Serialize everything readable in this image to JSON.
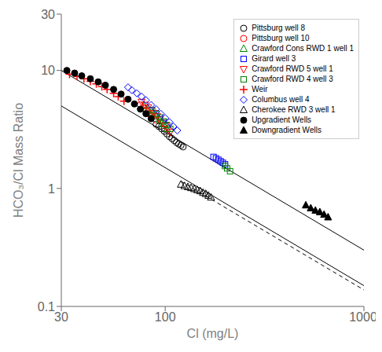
{
  "chart_data": {
    "type": "scatter",
    "x_label": "Cl (mg/L)",
    "y_label": "HCO₃/Cl Mass Ratio",
    "log": true,
    "xlim": [
      30,
      1000
    ],
    "ylim": [
      0.1,
      30
    ],
    "xticks": [
      30,
      100,
      1000
    ],
    "yticks": [
      0.1,
      1,
      10,
      30
    ],
    "grid": false,
    "legend": "upper right",
    "series": [
      {
        "type": "line",
        "line_style": "solid",
        "color": "black",
        "x": [
          30,
          1000
        ],
        "values": [
          10,
          0.3
        ]
      },
      {
        "type": "line",
        "line_style": "solid",
        "color": "black",
        "x": [
          30,
          1000
        ],
        "values": [
          5,
          0.15
        ]
      },
      {
        "type": "line",
        "line_style": "dashed",
        "color": "black",
        "x": [
          120,
          1000
        ],
        "values": [
          1.15,
          0.138
        ]
      },
      {
        "name": "Pittsburg well 8",
        "type": "scatter",
        "color": "black",
        "marker": "open-circle",
        "x": [
          90,
          93,
          96,
          99,
          102,
          105,
          108,
          111,
          114,
          117,
          120,
          123
        ],
        "values": [
          3.5,
          3.35,
          3.2,
          3.05,
          2.9,
          2.75,
          2.65,
          2.55,
          2.45,
          2.38,
          2.32,
          2.25
        ]
      },
      {
        "name": "Pittsburg well 10",
        "type": "scatter",
        "color": "red",
        "marker": "open-circle",
        "x": [
          75,
          78,
          80,
          83,
          86,
          90
        ],
        "values": [
          5.1,
          4.8,
          4.6,
          4.3,
          4.1,
          3.8
        ]
      },
      {
        "name": "Crawford Cons RWD 1 well 1",
        "type": "scatter",
        "color": "green",
        "marker": "open-triangle-up",
        "x": [
          78,
          82,
          86,
          90,
          94,
          98,
          102
        ],
        "values": [
          5.0,
          4.7,
          4.4,
          4.1,
          3.8,
          3.5,
          3.2
        ]
      },
      {
        "name": "Girard well 3",
        "type": "scatter",
        "color": "blue",
        "marker": "open-square",
        "x": [
          175,
          180,
          185,
          190,
          195,
          200
        ],
        "values": [
          1.85,
          1.8,
          1.75,
          1.7,
          1.65,
          1.6
        ]
      },
      {
        "name": "Crawford RWD 5 well 1",
        "type": "scatter",
        "color": "red",
        "marker": "open-triangle-down",
        "x": [
          76,
          79,
          82,
          85,
          88,
          91,
          94,
          97,
          100,
          103,
          106
        ],
        "values": [
          5.4,
          5.1,
          4.85,
          4.6,
          4.35,
          4.1,
          3.85,
          3.6,
          3.4,
          3.2,
          3.0
        ]
      },
      {
        "name": "Crawford RWD 4 well 3",
        "type": "scatter",
        "color": "green",
        "marker": "open-square",
        "x": [
          86,
          90,
          94,
          98,
          102,
          106,
          200,
          205,
          212
        ],
        "values": [
          4.6,
          4.3,
          4.0,
          3.7,
          3.45,
          3.2,
          1.55,
          1.48,
          1.4
        ]
      },
      {
        "name": "Weir",
        "type": "scatter",
        "color": "red",
        "marker": "plus",
        "x": [
          33,
          36,
          39,
          42,
          45,
          48,
          51,
          55,
          58,
          62
        ],
        "values": [
          9.3,
          8.9,
          8.5,
          8.1,
          7.7,
          7.3,
          6.9,
          6.4,
          6.0,
          5.5
        ]
      },
      {
        "name": "Columbus well 4",
        "type": "scatter",
        "color": "blue",
        "marker": "open-diamond",
        "x": [
          65,
          68,
          72,
          76,
          80,
          85,
          90,
          95,
          100,
          105,
          110,
          115
        ],
        "values": [
          7.2,
          6.8,
          6.4,
          6.0,
          5.6,
          5.1,
          4.7,
          4.3,
          3.95,
          3.65,
          3.35,
          3.1
        ]
      },
      {
        "name": "Cherokee RWD 3 well 1",
        "type": "scatter",
        "color": "black",
        "marker": "open-triangle-up",
        "x": [
          120,
          125,
          130,
          135,
          140,
          145,
          150,
          155,
          160,
          165,
          170
        ],
        "values": [
          1.08,
          1.05,
          1.03,
          1.01,
          0.99,
          0.97,
          0.95,
          0.92,
          0.9,
          0.87,
          0.84
        ]
      },
      {
        "name": "Upgradient Wells",
        "type": "scatter",
        "color": "black",
        "marker": "filled-circle",
        "x": [
          32,
          35,
          38,
          42,
          46,
          50,
          55,
          60,
          65,
          70,
          75,
          80,
          85
        ],
        "values": [
          10.0,
          9.5,
          9.0,
          8.5,
          8.0,
          7.5,
          6.9,
          6.3,
          5.7,
          5.2,
          4.7,
          4.3,
          3.9
        ]
      },
      {
        "name": "Downgradient Wells",
        "type": "scatter",
        "color": "black",
        "marker": "filled-triangle-up",
        "x": [
          510,
          540,
          570,
          600,
          630,
          660
        ],
        "values": [
          0.72,
          0.68,
          0.65,
          0.63,
          0.6,
          0.57
        ]
      }
    ]
  }
}
